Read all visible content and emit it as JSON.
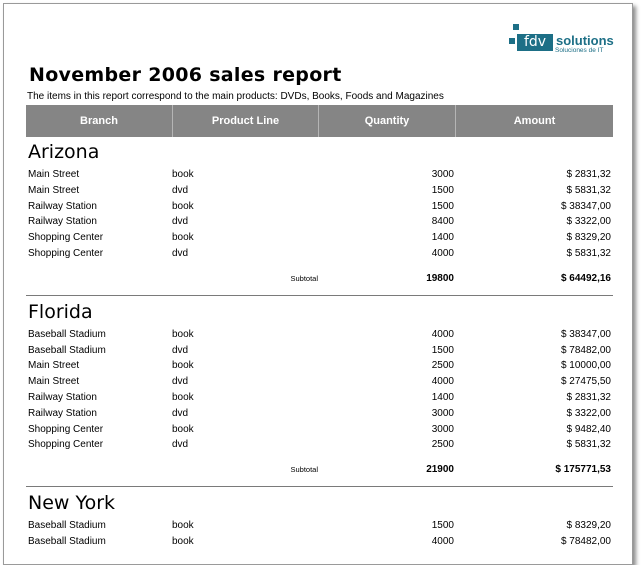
{
  "logo": {
    "mark": "fdv",
    "name": "solutions",
    "tagline": "Soluciones de IT"
  },
  "report": {
    "title": "November 2006 sales report",
    "subtitle": "The items in this report correspond to the main products: DVDs, Books, Foods and Magazines"
  },
  "table": {
    "headers": [
      "Branch",
      "Product Line",
      "Quantity",
      "Amount"
    ],
    "subtotal_label": "Subtotal",
    "groups": [
      {
        "name": "Arizona",
        "rows": [
          [
            "Main Street",
            "book",
            "3000",
            "$ 2831,32"
          ],
          [
            "Main Street",
            "dvd",
            "1500",
            "$ 5831,32"
          ],
          [
            "Railway Station",
            "book",
            "1500",
            "$ 38347,00"
          ],
          [
            "Railway Station",
            "dvd",
            "8400",
            "$ 3322,00"
          ],
          [
            "Shopping Center",
            "book",
            "1400",
            "$ 8329,20"
          ],
          [
            "Shopping Center",
            "dvd",
            "4000",
            "$ 5831,32"
          ]
        ],
        "subtotal_quantity": "19800",
        "subtotal_amount": "$ 64492,16"
      },
      {
        "name": "Florida",
        "rows": [
          [
            "Baseball Stadium",
            "book",
            "4000",
            "$ 38347,00"
          ],
          [
            "Baseball Stadium",
            "dvd",
            "1500",
            "$ 78482,00"
          ],
          [
            "Main Street",
            "book",
            "2500",
            "$ 10000,00"
          ],
          [
            "Main Street",
            "dvd",
            "4000",
            "$ 27475,50"
          ],
          [
            "Railway Station",
            "book",
            "1400",
            "$ 2831,32"
          ],
          [
            "Railway Station",
            "dvd",
            "3000",
            "$ 3322,00"
          ],
          [
            "Shopping Center",
            "book",
            "3000",
            "$ 9482,40"
          ],
          [
            "Shopping Center",
            "dvd",
            "2500",
            "$ 5831,32"
          ]
        ],
        "subtotal_quantity": "21900",
        "subtotal_amount": "$ 175771,53"
      },
      {
        "name": "New York",
        "rows": [
          [
            "Baseball Stadium",
            "book",
            "1500",
            "$ 8329,20"
          ],
          [
            "Baseball Stadium",
            "book",
            "4000",
            "$ 78482,00"
          ]
        ]
      }
    ]
  },
  "colors": {
    "header_bg": "#858585",
    "logo": "#1d6f86"
  }
}
